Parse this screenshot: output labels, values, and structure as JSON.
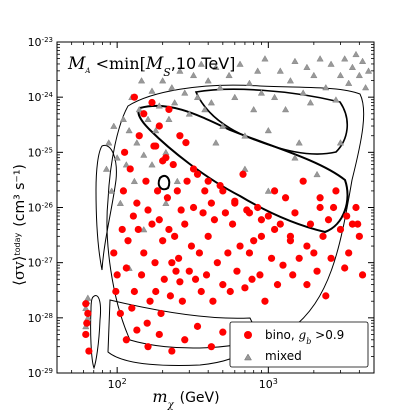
{
  "chart_data": {
    "type": "scatter",
    "annotation": {
      "lhs": "M",
      "lhs_sub": "A",
      "operator": " <min[",
      "rhs": "M",
      "rhs_sub": "S",
      "tail": ",10 TeV]"
    },
    "xlabel": {
      "symbol": "m",
      "sub": "χ",
      "unit": "(GeV)"
    },
    "ylabel": {
      "symbol": "⟨σv⟩",
      "sup": "today",
      "unit": "(cm³ s⁻¹)"
    },
    "x_scale": "log",
    "y_scale": "log",
    "xlim": [
      40,
      5000
    ],
    "ylim": [
      1e-29,
      1e-23
    ],
    "x_ticks": [
      {
        "value": 100,
        "mantissa": "10",
        "exp": "2"
      },
      {
        "value": 1000,
        "mantissa": "10",
        "exp": "3"
      }
    ],
    "y_ticks": [
      {
        "value": 1e-29,
        "mantissa": "10",
        "exp": "-29"
      },
      {
        "value": 1e-28,
        "mantissa": "10",
        "exp": "-28"
      },
      {
        "value": 1e-27,
        "mantissa": "10",
        "exp": "-27"
      },
      {
        "value": 1e-26,
        "mantissa": "10",
        "exp": "-26"
      },
      {
        "value": 1e-25,
        "mantissa": "10",
        "exp": "-25"
      },
      {
        "value": 1e-24,
        "mantissa": "10",
        "exp": "-24"
      },
      {
        "value": 1e-23,
        "mantissa": "10",
        "exp": "-23"
      }
    ],
    "legend": {
      "placement": "lower-right",
      "entries": [
        {
          "label": "bino, ",
          "label_math": "g",
          "label_sub": "b",
          "label_tail": " >0.9",
          "marker": "circle",
          "color": "#ff0000"
        },
        {
          "label": "mixed",
          "marker": "triangle",
          "color": "#999999"
        }
      ]
    },
    "colors": {
      "bino": "#ff0000",
      "mixed": "#999999",
      "contour": "#000000"
    },
    "series": [
      {
        "name": "bino",
        "marker": "circle",
        "points": [
          [
            62,
            5e-29
          ],
          [
            63,
            8e-29
          ],
          [
            64,
            1.2e-28
          ],
          [
            62,
            1.8e-28
          ],
          [
            65,
            2.5e-29
          ],
          [
            95,
            1.5e-27
          ],
          [
            98,
            3e-28
          ],
          [
            100,
            6e-28
          ],
          [
            105,
            1.2e-28
          ],
          [
            108,
            4e-27
          ],
          [
            110,
            2e-26
          ],
          [
            112,
            1e-25
          ],
          [
            115,
            8e-28
          ],
          [
            118,
            2.5e-27
          ],
          [
            122,
            5e-26
          ],
          [
            125,
            1.5e-28
          ],
          [
            128,
            7e-27
          ],
          [
            130,
            3e-28
          ],
          [
            135,
            1.2e-26
          ],
          [
            138,
            4e-27
          ],
          [
            140,
            2e-25
          ],
          [
            145,
            6e-28
          ],
          [
            150,
            1.5e-27
          ],
          [
            155,
            3e-26
          ],
          [
            158,
            8e-29
          ],
          [
            160,
            9e-27
          ],
          [
            165,
            2e-28
          ],
          [
            170,
            5e-27
          ],
          [
            175,
            1.3e-25
          ],
          [
            178,
            1e-27
          ],
          [
            180,
            3e-28
          ],
          [
            185,
            2e-26
          ],
          [
            190,
            6e-27
          ],
          [
            195,
            1.2e-28
          ],
          [
            200,
            2.5e-27
          ],
          [
            205,
            5e-28
          ],
          [
            210,
            8e-26
          ],
          [
            215,
            1.5e-26
          ],
          [
            220,
            4e-27
          ],
          [
            225,
            2.5e-28
          ],
          [
            230,
            1e-27
          ],
          [
            235,
            6e-26
          ],
          [
            240,
            3e-27
          ],
          [
            245,
            7e-28
          ],
          [
            250,
            2e-26
          ],
          [
            255,
            1.2e-27
          ],
          [
            260,
            4.5e-28
          ],
          [
            265,
            9e-27
          ],
          [
            270,
            2e-28
          ],
          [
            280,
            5e-27
          ],
          [
            285,
            1.5e-25
          ],
          [
            290,
            3e-26
          ],
          [
            300,
            7e-28
          ],
          [
            310,
            2e-27
          ],
          [
            320,
            1e-26
          ],
          [
            330,
            5e-28
          ],
          [
            340,
            4e-26
          ],
          [
            350,
            1.5e-27
          ],
          [
            360,
            3e-28
          ],
          [
            370,
            8e-27
          ],
          [
            380,
            2e-26
          ],
          [
            390,
            6e-28
          ],
          [
            400,
            3e-27
          ],
          [
            420,
            1.2e-26
          ],
          [
            430,
            2e-28
          ],
          [
            440,
            6e-27
          ],
          [
            460,
            1e-27
          ],
          [
            480,
            2.5e-26
          ],
          [
            500,
            4e-28
          ],
          [
            520,
            8e-27
          ],
          [
            540,
            1.5e-27
          ],
          [
            560,
            3e-28
          ],
          [
            580,
            5e-27
          ],
          [
            600,
            1.2e-26
          ],
          [
            620,
            7e-28
          ],
          [
            650,
            2e-27
          ],
          [
            680,
            4e-26
          ],
          [
            700,
            3.5e-28
          ],
          [
            720,
            9e-27
          ],
          [
            750,
            1.5e-27
          ],
          [
            780,
            5e-28
          ],
          [
            800,
            2.5e-27
          ],
          [
            850,
            1e-26
          ],
          [
            880,
            6e-28
          ],
          [
            900,
            3e-27
          ],
          [
            950,
            2e-28
          ],
          [
            1000,
            7e-27
          ],
          [
            1050,
            1.2e-27
          ],
          [
            1100,
            2e-26
          ],
          [
            1150,
            4e-28
          ],
          [
            1200,
            5e-27
          ],
          [
            1250,
            9e-28
          ],
          [
            1300,
            1.5e-26
          ],
          [
            1400,
            2.5e-27
          ],
          [
            1450,
            6e-28
          ],
          [
            1500,
            8e-27
          ],
          [
            1600,
            1.2e-27
          ],
          [
            1700,
            3e-26
          ],
          [
            1800,
            4e-28
          ],
          [
            1900,
            5e-27
          ],
          [
            2000,
            1.5e-27
          ],
          [
            2100,
            7e-28
          ],
          [
            2200,
            1e-26
          ],
          [
            2300,
            3e-27
          ],
          [
            2400,
            2.5e-28
          ],
          [
            2500,
            6e-27
          ],
          [
            2600,
            1.2e-27
          ],
          [
            2800,
            2e-26
          ],
          [
            3000,
            4e-27
          ],
          [
            3200,
            8e-28
          ],
          [
            3400,
            1.5e-27
          ],
          [
            3600,
            5e-27
          ],
          [
            3800,
            1e-26
          ],
          [
            4000,
            3e-27
          ],
          [
            4200,
            6e-28
          ],
          [
            130,
            1e-24
          ],
          [
            150,
            5e-25
          ],
          [
            170,
            8e-25
          ],
          [
            190,
            3e-25
          ],
          [
            220,
            6e-25
          ],
          [
            260,
            2e-25
          ],
          [
            180,
            1.3e-25
          ],
          [
            200,
            7e-26
          ],
          [
            320,
            5e-26
          ],
          [
            400,
            3e-26
          ],
          [
            500,
            2e-26
          ],
          [
            600,
            1.3e-26
          ],
          [
            750,
            8e-27
          ],
          [
            900,
            6e-27
          ],
          [
            1100,
            4e-27
          ],
          [
            1400,
            3e-27
          ],
          [
            1800,
            2e-27
          ],
          [
            2200,
            1.5e-26
          ],
          [
            2700,
            1e-26
          ],
          [
            3300,
            7e-27
          ],
          [
            3900,
            5e-27
          ],
          [
            115,
            4e-29
          ],
          [
            135,
            6e-29
          ],
          [
            160,
            3e-29
          ],
          [
            190,
            5e-29
          ],
          [
            230,
            2.5e-29
          ],
          [
            280,
            4e-29
          ],
          [
            340,
            7e-29
          ],
          [
            420,
            3e-29
          ],
          [
            500,
            5.5e-29
          ],
          [
            620,
            2e-29
          ],
          [
            760,
            4e-29
          ],
          [
            920,
            3e-29
          ],
          [
            1100,
            6e-29
          ],
          [
            1350,
            2.5e-29
          ],
          [
            1650,
            4.5e-29
          ],
          [
            2000,
            3e-29
          ]
        ]
      },
      {
        "name": "mixed",
        "marker": "triangle",
        "points": [
          [
            62,
            1.5e-28
          ],
          [
            63,
            2e-28
          ],
          [
            64,
            1e-28
          ],
          [
            62,
            7e-29
          ],
          [
            64,
            2.3e-28
          ],
          [
            85,
            5e-26
          ],
          [
            88,
            1.5e-25
          ],
          [
            92,
            2e-26
          ],
          [
            95,
            3e-25
          ],
          [
            100,
            8e-26
          ],
          [
            105,
            1.2e-26
          ],
          [
            110,
            4e-25
          ],
          [
            115,
            6e-26
          ],
          [
            120,
            2.5e-25
          ],
          [
            125,
            1e-24
          ],
          [
            130,
            3e-26
          ],
          [
            135,
            1.5e-25
          ],
          [
            140,
            6e-25
          ],
          [
            145,
            2e-24
          ],
          [
            150,
            9e-26
          ],
          [
            160,
            4e-25
          ],
          [
            170,
            1.3e-24
          ],
          [
            180,
            2.5e-25
          ],
          [
            190,
            7e-25
          ],
          [
            200,
            2e-24
          ],
          [
            210,
            1e-25
          ],
          [
            220,
            4e-25
          ],
          [
            230,
            1.5e-24
          ],
          [
            240,
            8e-25
          ],
          [
            260,
            3e-24
          ],
          [
            280,
            1.2e-24
          ],
          [
            300,
            5e-25
          ],
          [
            320,
            2.5e-24
          ],
          [
            340,
            1e-24
          ],
          [
            360,
            4e-24
          ],
          [
            380,
            6e-25
          ],
          [
            400,
            2e-24
          ],
          [
            420,
            8e-25
          ],
          [
            450,
            3.5e-24
          ],
          [
            480,
            1.5e-24
          ],
          [
            500,
            3e-25
          ],
          [
            550,
            2.5e-24
          ],
          [
            600,
            1e-24
          ],
          [
            650,
            4e-24
          ],
          [
            700,
            2e-25
          ],
          [
            750,
            1.8e-24
          ],
          [
            800,
            6e-25
          ],
          [
            850,
            3e-24
          ],
          [
            900,
            1.2e-24
          ],
          [
            950,
            5e-24
          ],
          [
            1000,
            2.5e-25
          ],
          [
            1100,
            1e-24
          ],
          [
            1200,
            3e-24
          ],
          [
            1300,
            6e-25
          ],
          [
            1400,
            2e-24
          ],
          [
            1500,
            4.5e-24
          ],
          [
            1600,
            1.5e-25
          ],
          [
            1700,
            1.2e-24
          ],
          [
            1800,
            3.5e-24
          ],
          [
            1900,
            8e-25
          ],
          [
            2000,
            2.5e-24
          ],
          [
            2200,
            5e-24
          ],
          [
            2400,
            1.5e-24
          ],
          [
            2600,
            4e-24
          ],
          [
            2800,
            9e-25
          ],
          [
            3000,
            2.5e-24
          ],
          [
            3200,
            5e-24
          ],
          [
            3400,
            1.8e-24
          ],
          [
            3600,
            3.5e-24
          ],
          [
            3800,
            6e-24
          ],
          [
            4000,
            2.5e-24
          ],
          [
            4200,
            4.5e-24
          ],
          [
            4400,
            1.5e-24
          ],
          [
            4600,
            3e-24
          ],
          [
            210,
            1.2e-26
          ],
          [
            150,
            4e-27
          ],
          [
            120,
            8e-28
          ],
          [
            170,
            6e-26
          ],
          [
            250,
            3e-26
          ],
          [
            450,
            1.5e-25
          ],
          [
            700,
            5e-26
          ],
          [
            1000,
            2e-26
          ],
          [
            1500,
            8e-26
          ],
          [
            2100,
            4e-26
          ],
          [
            3000,
            1.5e-25
          ]
        ]
      }
    ]
  }
}
